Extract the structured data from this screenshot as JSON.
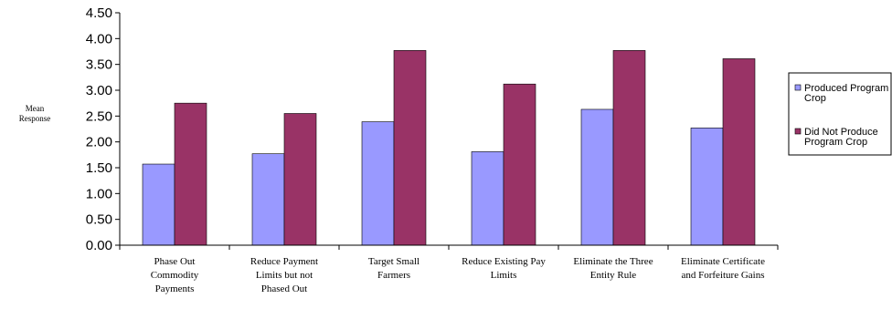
{
  "chart_data": {
    "type": "bar",
    "ylabel": [
      "Mean",
      "Response"
    ],
    "ylim": [
      0,
      4.5
    ],
    "yticks": [
      "0.00",
      "0.50",
      "1.00",
      "1.50",
      "2.00",
      "2.50",
      "3.00",
      "3.50",
      "4.00",
      "4.50"
    ],
    "categories": [
      [
        "Phase Out",
        "Commodity",
        "Payments"
      ],
      [
        "Reduce Payment",
        "Limits but not",
        "Phased Out"
      ],
      [
        "Target Small",
        "Farmers"
      ],
      [
        "Reduce Existing Pay",
        "Limits"
      ],
      [
        "Eliminate the Three",
        "Entity Rule"
      ],
      [
        "Eliminate Certificate",
        "and Forfeiture Gains"
      ]
    ],
    "series": [
      {
        "name": [
          "Produced Program",
          "Crop"
        ],
        "color": "#9999ff",
        "values": [
          1.57,
          1.77,
          2.39,
          1.81,
          2.63,
          2.27
        ]
      },
      {
        "name": [
          "Did Not Produce",
          "Program Crop"
        ],
        "color": "#993366",
        "values": [
          2.75,
          2.55,
          3.77,
          3.12,
          3.77,
          3.61
        ]
      }
    ],
    "legend": "right",
    "grid": false
  }
}
